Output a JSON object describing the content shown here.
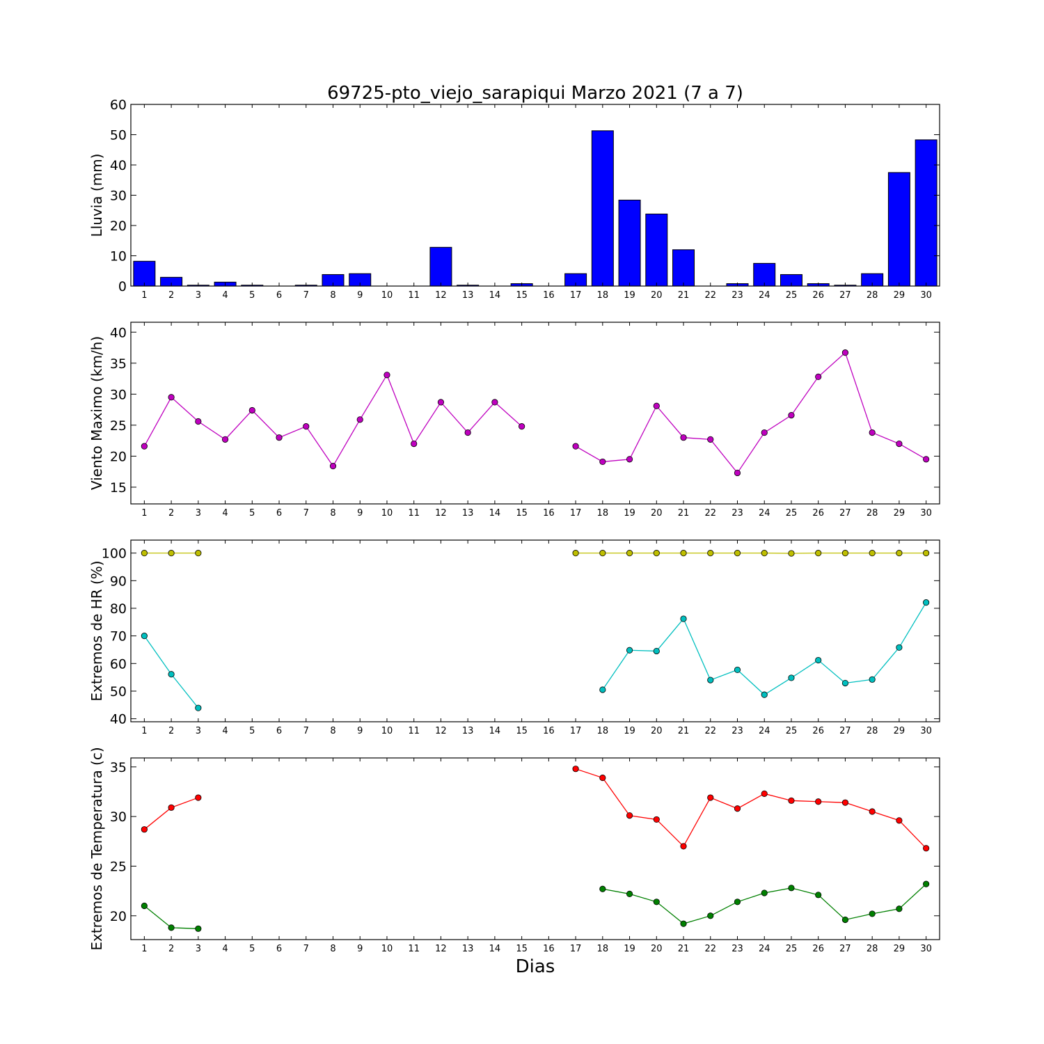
{
  "figure": {
    "title": "69725-pto_viejo_sarapiqui Marzo 2021  (7 a 7)",
    "xlabel": "Dias"
  },
  "chart_data": [
    {
      "type": "bar",
      "ylabel": "Lluvia (mm)",
      "ylim": [
        0,
        60
      ],
      "yticks": [
        0,
        10,
        20,
        30,
        40,
        50,
        60
      ],
      "x": [
        1,
        2,
        3,
        4,
        5,
        6,
        7,
        8,
        9,
        10,
        11,
        12,
        13,
        14,
        15,
        16,
        17,
        18,
        19,
        20,
        21,
        22,
        23,
        24,
        25,
        26,
        27,
        28,
        29,
        30
      ],
      "xlim": [
        0.5,
        30.5
      ],
      "grid": false,
      "series": [
        {
          "color": "#0000ff",
          "values": [
            8.2,
            2.9,
            0.3,
            1.3,
            0.3,
            0,
            0.3,
            3.8,
            4.1,
            0,
            0,
            12.8,
            0.3,
            0,
            0.8,
            0,
            4.1,
            51.3,
            28.4,
            23.8,
            12.0,
            0,
            0.8,
            7.5,
            3.8,
            0.8,
            0.3,
            4.1,
            37.5,
            48.3
          ]
        }
      ]
    },
    {
      "type": "line",
      "ylabel": "Viento Maximo (km/h)",
      "ylim": [
        12.3,
        41.6
      ],
      "yticks": [
        15,
        20,
        25,
        30,
        35,
        40
      ],
      "x": [
        1,
        2,
        3,
        4,
        5,
        6,
        7,
        8,
        9,
        10,
        11,
        12,
        13,
        14,
        15,
        16,
        17,
        18,
        19,
        20,
        21,
        22,
        23,
        24,
        25,
        26,
        27,
        28,
        29,
        30
      ],
      "xlim": [
        0.5,
        30.5
      ],
      "grid": false,
      "series": [
        {
          "color": "#bf00bf",
          "values": [
            21.6,
            29.5,
            25.6,
            22.7,
            27.4,
            23.0,
            24.8,
            18.4,
            25.9,
            33.1,
            22.0,
            28.7,
            23.8,
            28.7,
            24.8,
            null,
            21.6,
            19.1,
            19.5,
            28.1,
            23.0,
            22.7,
            17.3,
            23.8,
            26.6,
            32.8,
            36.7,
            23.8,
            22.0,
            19.5
          ]
        }
      ]
    },
    {
      "type": "line",
      "ylabel": "Extremos de HR (%)",
      "ylim": [
        38.9,
        104.7
      ],
      "yticks": [
        40,
        50,
        60,
        70,
        80,
        90,
        100
      ],
      "x": [
        1,
        2,
        3,
        4,
        5,
        6,
        7,
        8,
        9,
        10,
        11,
        12,
        13,
        14,
        15,
        16,
        17,
        18,
        19,
        20,
        21,
        22,
        23,
        24,
        25,
        26,
        27,
        28,
        29,
        30
      ],
      "xlim": [
        0.5,
        30.5
      ],
      "grid": false,
      "series": [
        {
          "color": "#bfbf00",
          "values": [
            100,
            100,
            100,
            null,
            null,
            null,
            null,
            null,
            null,
            null,
            null,
            null,
            null,
            null,
            null,
            null,
            100,
            100,
            100,
            100,
            100,
            100,
            100,
            100,
            99.9,
            100,
            100,
            100,
            100,
            100
          ]
        },
        {
          "color": "#00bfbf",
          "values": [
            70.0,
            56.1,
            43.9,
            null,
            null,
            null,
            null,
            null,
            null,
            null,
            null,
            null,
            null,
            null,
            null,
            null,
            null,
            50.5,
            64.8,
            64.5,
            76.2,
            54.0,
            57.7,
            48.7,
            54.8,
            61.2,
            52.9,
            54.2,
            65.8,
            82.1
          ]
        }
      ]
    },
    {
      "type": "line",
      "ylabel": "Extremos de Temperatura (c)",
      "ylim": [
        17.6,
        35.9
      ],
      "yticks": [
        20,
        25,
        30,
        35
      ],
      "x": [
        1,
        2,
        3,
        4,
        5,
        6,
        7,
        8,
        9,
        10,
        11,
        12,
        13,
        14,
        15,
        16,
        17,
        18,
        19,
        20,
        21,
        22,
        23,
        24,
        25,
        26,
        27,
        28,
        29,
        30
      ],
      "xlim": [
        0.5,
        30.5
      ],
      "grid": false,
      "series": [
        {
          "color": "#ff0000",
          "values": [
            28.7,
            30.9,
            31.9,
            null,
            null,
            null,
            null,
            null,
            null,
            null,
            null,
            null,
            null,
            null,
            null,
            null,
            34.8,
            33.9,
            30.1,
            29.7,
            27.0,
            31.9,
            30.8,
            32.3,
            31.6,
            31.5,
            31.4,
            30.5,
            29.6,
            26.8
          ]
        },
        {
          "color": "#008000",
          "values": [
            21.0,
            18.8,
            18.7,
            null,
            null,
            null,
            null,
            null,
            null,
            null,
            null,
            null,
            null,
            null,
            null,
            null,
            null,
            22.7,
            22.2,
            21.4,
            19.2,
            20.0,
            21.4,
            22.3,
            22.8,
            22.1,
            19.6,
            20.2,
            20.7,
            23.2
          ]
        }
      ]
    }
  ]
}
